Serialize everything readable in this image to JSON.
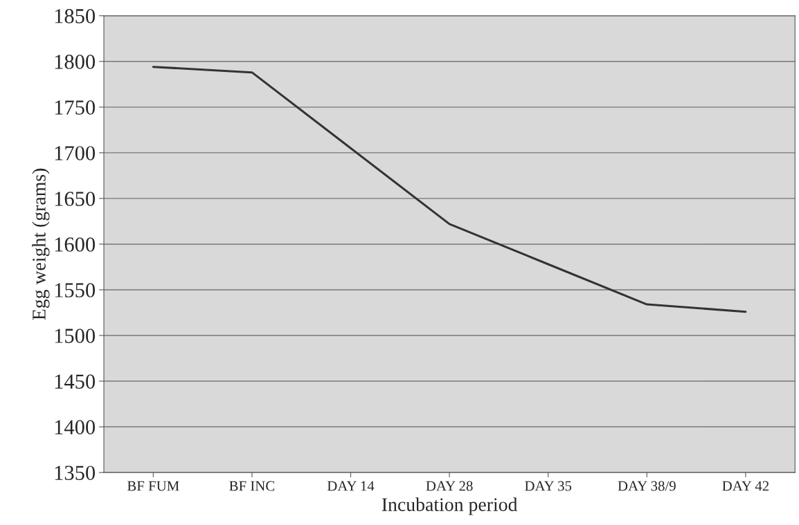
{
  "chart_data": {
    "type": "line",
    "xlabel": "Incubation period",
    "ylabel": "Egg weight (grams)",
    "categories": [
      "BF FUM",
      "BF INC",
      "DAY 14",
      "DAY 28",
      "DAY 35",
      "DAY 38/9",
      "DAY 42"
    ],
    "series": [
      {
        "color": "#333333",
        "values": [
          1794,
          1788,
          1705,
          1622,
          1578,
          1534,
          1526
        ]
      }
    ],
    "ylim": [
      1350,
      1850
    ],
    "yticks": [
      1350,
      1400,
      1450,
      1500,
      1550,
      1600,
      1650,
      1700,
      1750,
      1800,
      1850
    ],
    "grid": "y"
  }
}
